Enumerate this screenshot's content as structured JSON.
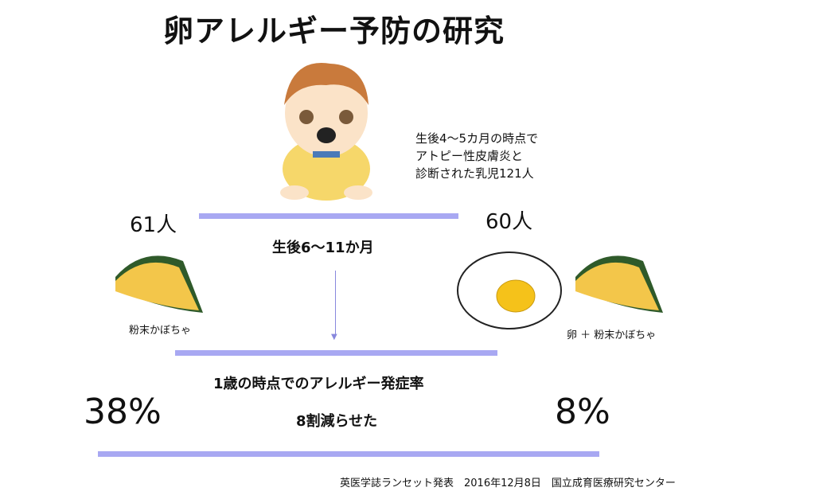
{
  "title": "卵アレルギー予防の研究",
  "description": [
    "生後4〜5カ月の時点で",
    "アトピー性皮膚炎と",
    "診断された乳児121人"
  ],
  "left_group": {
    "count": "61人",
    "label": "粉末かぼちゃ",
    "rate": "38%"
  },
  "right_group": {
    "count": "60人",
    "label": "卵 ＋ 粉末かぼちゃ",
    "rate": "8%"
  },
  "period": "生後6〜11か月",
  "outcome_label": "1歳の時点でのアレルギー発症率",
  "reduction": "8割減らせた",
  "source": "英医学誌ランセット発表　2016年12月8日　国立成育医療研究センター",
  "colors": {
    "bar": "#a8a8f2"
  }
}
